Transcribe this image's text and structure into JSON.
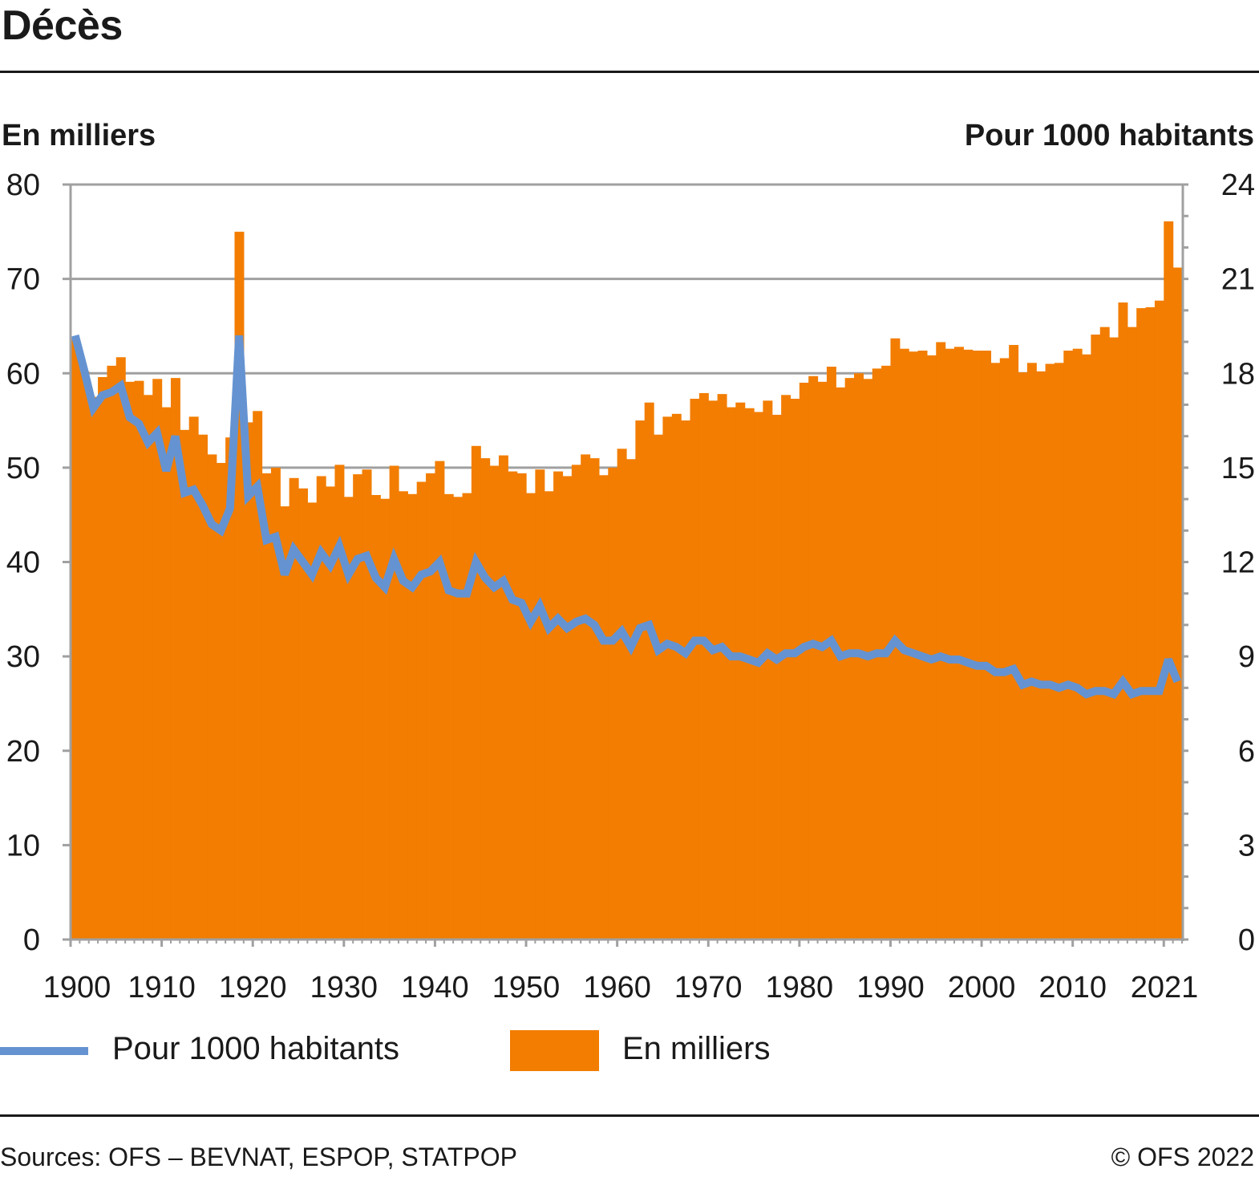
{
  "title": "Décès",
  "colors": {
    "bars": "#f27d00",
    "line": "#6593d1",
    "grid": "#a0a0a0",
    "text": "#1a1a1a"
  },
  "legend": {
    "line_label": "Pour 1000 habitants",
    "bar_label": "En milliers"
  },
  "footer": {
    "sources": "Sources: OFS – BEVNAT, ESPOP, STATPOP",
    "copyright": "© OFS 2022"
  },
  "chart_data": {
    "type": "bar+line",
    "title": "Décès",
    "ylabel_left": "En milliers",
    "ylabel_right": "Pour 1000 habitants",
    "ylim_left": [
      0,
      80
    ],
    "ylim_right": [
      0,
      24
    ],
    "yticks_left": [
      "0",
      "10",
      "20",
      "30",
      "40",
      "50",
      "60",
      "70",
      "80"
    ],
    "yticks_right": [
      "0",
      "3",
      "6",
      "9",
      "12",
      "15",
      "18",
      "21",
      "24"
    ],
    "xticks": [
      "1900",
      "1910",
      "1920",
      "1930",
      "1940",
      "1950",
      "1960",
      "1970",
      "1980",
      "1990",
      "2000",
      "2010",
      "2021"
    ],
    "grid": "horizontal",
    "legend_position": "bottom",
    "x_start": 1900,
    "x_end": 2021,
    "series": [
      {
        "name": "En milliers",
        "type": "bar",
        "axis": "left",
        "values": [
          63.6,
          60.2,
          57.5,
          59.6,
          60.8,
          61.7,
          59.1,
          59.2,
          57.7,
          59.4,
          56.4,
          59.5,
          54.0,
          55.4,
          53.5,
          51.4,
          50.5,
          53.2,
          75.0,
          54.8,
          56.0,
          49.4,
          50.0,
          45.9,
          48.9,
          47.8,
          46.3,
          49.1,
          48.0,
          50.3,
          46.9,
          49.3,
          49.8,
          47.1,
          46.7,
          50.2,
          47.5,
          47.2,
          48.5,
          49.4,
          50.7,
          47.2,
          46.9,
          47.3,
          52.3,
          51.0,
          50.2,
          51.3,
          49.6,
          49.4,
          47.3,
          49.8,
          47.5,
          49.6,
          49.1,
          50.3,
          51.4,
          51.0,
          49.2,
          50.0,
          52.0,
          50.9,
          55.0,
          56.9,
          53.5,
          55.4,
          55.7,
          55.0,
          57.3,
          57.9,
          57.1,
          57.8,
          56.4,
          56.9,
          56.3,
          55.9,
          57.1,
          55.6,
          57.7,
          57.3,
          59.0,
          59.7,
          59.1,
          60.7,
          58.5,
          59.5,
          60.0,
          59.4,
          60.5,
          60.8,
          63.7,
          62.6,
          62.3,
          62.4,
          61.9,
          63.3,
          62.6,
          62.8,
          62.5,
          62.4,
          62.4,
          61.1,
          61.6,
          63.0,
          60.1,
          61.1,
          60.2,
          61.0,
          61.1,
          62.4,
          62.6,
          62.0,
          64.1,
          64.9,
          63.8,
          67.5,
          64.9,
          66.9,
          67.0,
          67.7,
          76.1,
          71.2
        ]
      },
      {
        "name": "Pour 1000 habitants",
        "type": "line",
        "axis": "right",
        "values": [
          19.2,
          18.1,
          16.9,
          17.3,
          17.4,
          17.6,
          16.6,
          16.4,
          15.8,
          16.1,
          14.9,
          16.0,
          14.2,
          14.3,
          13.8,
          13.2,
          13.0,
          13.7,
          19.2,
          14.1,
          14.4,
          12.7,
          12.8,
          11.6,
          12.4,
          12.0,
          11.6,
          12.3,
          11.9,
          12.5,
          11.6,
          12.1,
          12.2,
          11.5,
          11.2,
          12.1,
          11.4,
          11.2,
          11.6,
          11.7,
          12.0,
          11.1,
          11.0,
          11.0,
          12.0,
          11.5,
          11.2,
          11.4,
          10.8,
          10.7,
          10.1,
          10.6,
          9.9,
          10.2,
          9.9,
          10.1,
          10.2,
          10.0,
          9.5,
          9.5,
          9.8,
          9.3,
          9.9,
          10.0,
          9.2,
          9.4,
          9.3,
          9.1,
          9.5,
          9.5,
          9.2,
          9.3,
          9.0,
          9.0,
          8.9,
          8.8,
          9.1,
          8.9,
          9.1,
          9.1,
          9.3,
          9.4,
          9.3,
          9.5,
          9.0,
          9.1,
          9.1,
          9.0,
          9.1,
          9.1,
          9.5,
          9.2,
          9.1,
          9.0,
          8.9,
          9.0,
          8.9,
          8.9,
          8.8,
          8.7,
          8.7,
          8.5,
          8.5,
          8.6,
          8.1,
          8.2,
          8.1,
          8.1,
          8.0,
          8.1,
          8.0,
          7.8,
          7.9,
          7.9,
          7.8,
          8.2,
          7.8,
          7.9,
          7.9,
          7.9,
          8.9,
          8.2
        ]
      }
    ]
  }
}
